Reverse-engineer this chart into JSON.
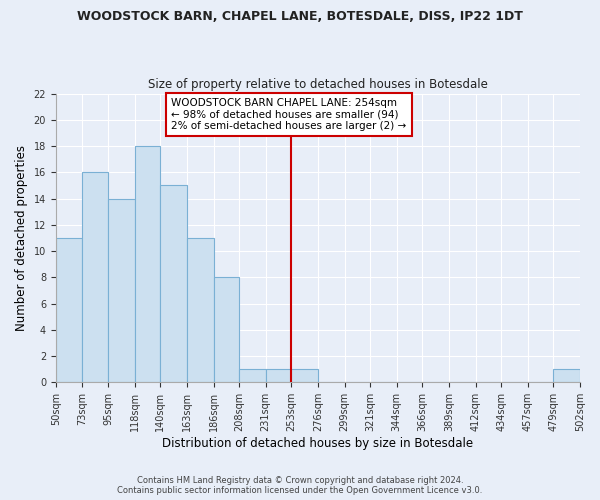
{
  "title": "WOODSTOCK BARN, CHAPEL LANE, BOTESDALE, DISS, IP22 1DT",
  "subtitle": "Size of property relative to detached houses in Botesdale",
  "xlabel": "Distribution of detached houses by size in Botesdale",
  "ylabel": "Number of detached properties",
  "bin_edges": [
    50,
    73,
    95,
    118,
    140,
    163,
    186,
    208,
    231,
    253,
    276,
    299,
    321,
    344,
    366,
    389,
    412,
    434,
    457,
    479,
    502
  ],
  "bin_labels": [
    "50sqm",
    "73sqm",
    "95sqm",
    "118sqm",
    "140sqm",
    "163sqm",
    "186sqm",
    "208sqm",
    "231sqm",
    "253sqm",
    "276sqm",
    "299sqm",
    "321sqm",
    "344sqm",
    "366sqm",
    "389sqm",
    "412sqm",
    "434sqm",
    "457sqm",
    "479sqm",
    "502sqm"
  ],
  "counts": [
    11,
    16,
    14,
    18,
    15,
    11,
    8,
    1,
    1,
    1,
    0,
    0,
    0,
    0,
    0,
    0,
    0,
    0,
    0,
    1
  ],
  "bar_color": "#cce0f0",
  "bar_edge_color": "#7ab0d4",
  "vline_x": 253,
  "vline_color": "#cc0000",
  "annotation_title": "WOODSTOCK BARN CHAPEL LANE: 254sqm",
  "annotation_line1": "← 98% of detached houses are smaller (94)",
  "annotation_line2": "2% of semi-detached houses are larger (2) →",
  "annotation_box_color": "#ffffff",
  "annotation_box_edge": "#cc0000",
  "ylim": [
    0,
    22
  ],
  "yticks": [
    0,
    2,
    4,
    6,
    8,
    10,
    12,
    14,
    16,
    18,
    20,
    22
  ],
  "footer1": "Contains HM Land Registry data © Crown copyright and database right 2024.",
  "footer2": "Contains public sector information licensed under the Open Government Licence v3.0.",
  "bg_color": "#e8eef8",
  "grid_color": "#ffffff"
}
